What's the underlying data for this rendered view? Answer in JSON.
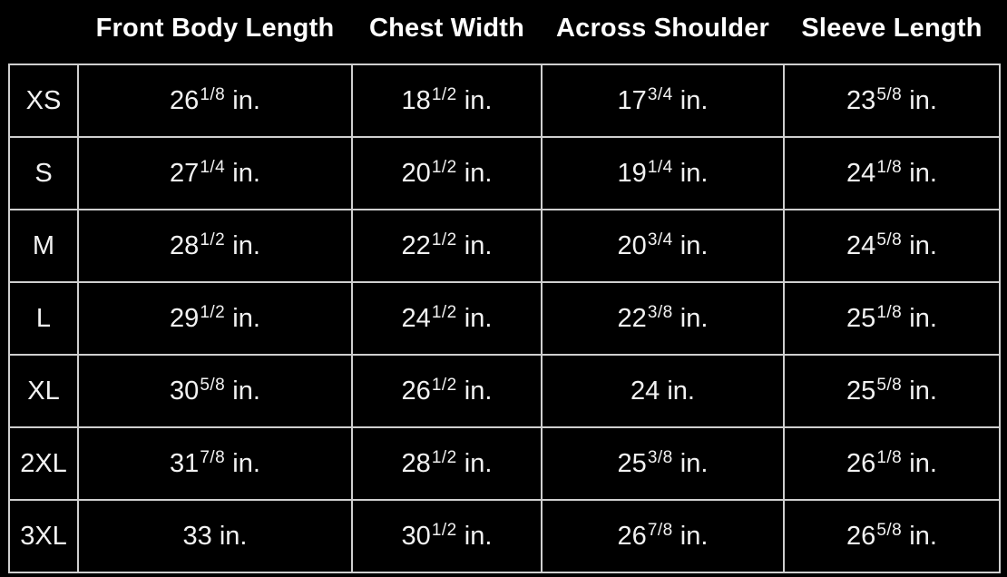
{
  "colors": {
    "background": "#000000",
    "header_text": "#ffffff",
    "cell_text": "#f2f2f2",
    "grid_border": "#cfcfcf"
  },
  "chart_data": {
    "type": "table",
    "unit": "in.",
    "columns": [
      "Front Body Length",
      "Chest Width",
      "Across Shoulder",
      "Sleeve Length"
    ],
    "row_headers": [
      "XS",
      "S",
      "M",
      "L",
      "XL",
      "2XL",
      "3XL"
    ],
    "rows": [
      {
        "size": "XS",
        "values": [
          {
            "whole": "26",
            "frac": "1/8"
          },
          {
            "whole": "18",
            "frac": "1/2"
          },
          {
            "whole": "17",
            "frac": "3/4"
          },
          {
            "whole": "23",
            "frac": "5/8"
          }
        ]
      },
      {
        "size": "S",
        "values": [
          {
            "whole": "27",
            "frac": "1/4"
          },
          {
            "whole": "20",
            "frac": "1/2"
          },
          {
            "whole": "19",
            "frac": "1/4"
          },
          {
            "whole": "24",
            "frac": "1/8"
          }
        ]
      },
      {
        "size": "M",
        "values": [
          {
            "whole": "28",
            "frac": "1/2"
          },
          {
            "whole": "22",
            "frac": "1/2"
          },
          {
            "whole": "20",
            "frac": "3/4"
          },
          {
            "whole": "24",
            "frac": "5/8"
          }
        ]
      },
      {
        "size": "L",
        "values": [
          {
            "whole": "29",
            "frac": "1/2"
          },
          {
            "whole": "24",
            "frac": "1/2"
          },
          {
            "whole": "22",
            "frac": "3/8"
          },
          {
            "whole": "25",
            "frac": "1/8"
          }
        ]
      },
      {
        "size": "XL",
        "values": [
          {
            "whole": "30",
            "frac": "5/8"
          },
          {
            "whole": "26",
            "frac": "1/2"
          },
          {
            "whole": "24",
            "frac": ""
          },
          {
            "whole": "25",
            "frac": "5/8"
          }
        ]
      },
      {
        "size": "2XL",
        "values": [
          {
            "whole": "31",
            "frac": "7/8"
          },
          {
            "whole": "28",
            "frac": "1/2"
          },
          {
            "whole": "25",
            "frac": "3/8"
          },
          {
            "whole": "26",
            "frac": "1/8"
          }
        ]
      },
      {
        "size": "3XL",
        "values": [
          {
            "whole": "33",
            "frac": ""
          },
          {
            "whole": "30",
            "frac": "1/2"
          },
          {
            "whole": "26",
            "frac": "7/8"
          },
          {
            "whole": "26",
            "frac": "5/8"
          }
        ]
      }
    ]
  }
}
